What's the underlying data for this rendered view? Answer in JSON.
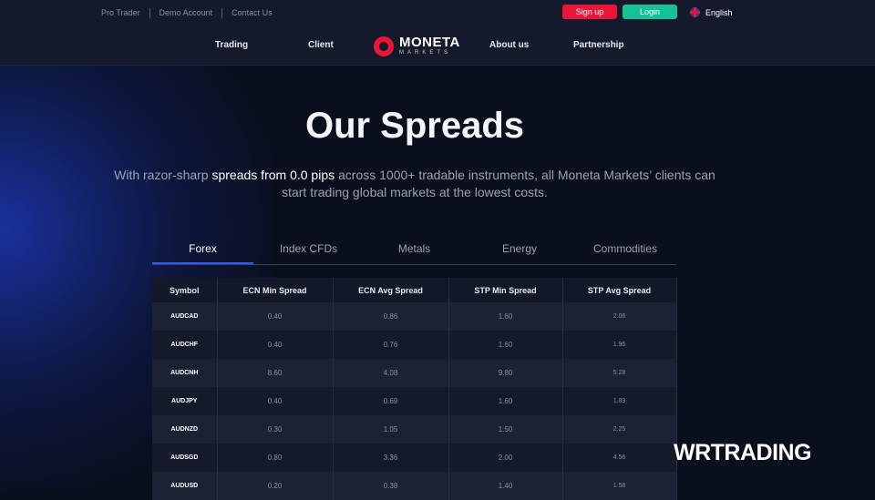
{
  "header": {
    "top_links": [
      "Pro Trader",
      "Demo Account",
      "Contact Us"
    ],
    "signup": "Sign up",
    "login": "Login",
    "language": "English",
    "nav": [
      "Trading",
      "Client",
      "About us",
      "Partnership"
    ],
    "logo_text": "MONETA",
    "logo_sub": "MARKETS"
  },
  "colors": {
    "signup": "#e8173a",
    "login": "#13c295",
    "accent": "#2f5bff"
  },
  "hero": {
    "title": "Our Spreads",
    "sub_pre": "With razor-sharp ",
    "sub_bold": "spreads from 0.0 pips",
    "sub_post": " across 1000+ tradable instruments, all Moneta Markets’ clients can start trading global markets at the lowest costs."
  },
  "tabs": [
    "Forex",
    "Index CFDs",
    "Metals",
    "Energy",
    "Commodities"
  ],
  "active_tab": "Forex",
  "table": {
    "headers": [
      "Symbol",
      "ECN Min Spread",
      "ECN Avg Spread",
      "STP Min Spread",
      "STP Avg Spread"
    ],
    "rows": [
      [
        "AUDCAD",
        "0.40",
        "0.86",
        "1.60",
        "2.06"
      ],
      [
        "AUDCHF",
        "0.40",
        "0.76",
        "1.60",
        "1.96"
      ],
      [
        "AUDCNH",
        "8.60",
        "4.08",
        "9.80",
        "5.28"
      ],
      [
        "AUDJPY",
        "0.40",
        "0.69",
        "1.60",
        "1.89"
      ],
      [
        "AUDNZD",
        "0.30",
        "1.05",
        "1.50",
        "2.25"
      ],
      [
        "AUDSGD",
        "0.80",
        "3.36",
        "2.00",
        "4.56"
      ],
      [
        "AUDUSD",
        "0.20",
        "0.38",
        "1.40",
        "1.58"
      ]
    ]
  },
  "watermark": "WRTRADING"
}
